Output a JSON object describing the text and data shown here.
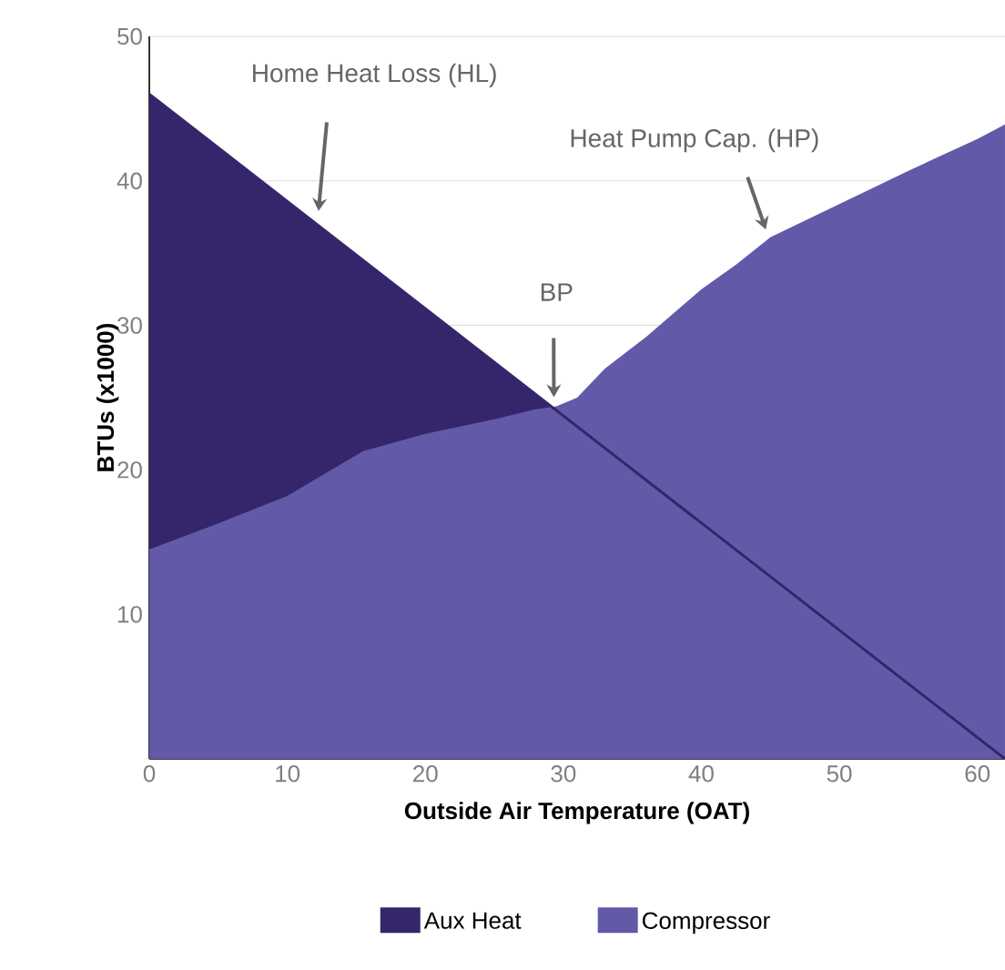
{
  "chart_data": {
    "type": "area",
    "xlabel": "Outside Air Temperature (OAT)",
    "ylabel": "BTUs (x1000)",
    "xlim": [
      0,
      62
    ],
    "ylim": [
      0,
      50
    ],
    "xticks": [
      0,
      10,
      20,
      30,
      40,
      50,
      60
    ],
    "yticks": [
      10,
      20,
      30,
      40,
      50
    ],
    "grid": "y",
    "legend": "bottom",
    "series": [
      {
        "name": "Aux Heat",
        "color": "#35266b",
        "x": [
          0,
          62
        ],
        "values": [
          46,
          0
        ]
      },
      {
        "name": "Compressor",
        "color": "#625aa8",
        "x": [
          0,
          5,
          10,
          15.5,
          20,
          25,
          28,
          29.5,
          31,
          33,
          36,
          40,
          42.5,
          45,
          50,
          55,
          60,
          62
        ],
        "values": [
          14.5,
          16.3,
          18.2,
          21.3,
          22.5,
          23.5,
          24.2,
          24.4,
          25,
          27,
          29.2,
          32.5,
          34.2,
          36.1,
          38.4,
          40.7,
          42.9,
          43.9
        ]
      }
    ],
    "annotations": [
      "Home Heat Loss (HL)",
      "Heat Pump Cap. (HP)",
      "BP"
    ]
  }
}
